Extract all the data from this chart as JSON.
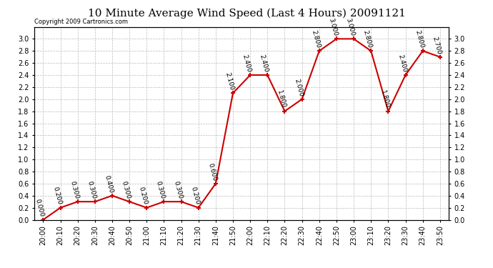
{
  "title": "10 Minute Average Wind Speed (Last 4 Hours) 20091121",
  "copyright": "Copyright 2009 Cartronics.com",
  "x_labels": [
    "20:00",
    "20:10",
    "20:20",
    "20:30",
    "20:40",
    "20:50",
    "21:00",
    "21:10",
    "21:20",
    "21:30",
    "21:40",
    "21:50",
    "22:00",
    "22:10",
    "22:20",
    "22:30",
    "22:40",
    "22:50",
    "23:00",
    "23:10",
    "23:20",
    "23:30",
    "23:40",
    "23:50"
  ],
  "y_values": [
    0.0,
    0.2,
    0.3,
    0.3,
    0.4,
    0.3,
    0.2,
    0.3,
    0.3,
    0.2,
    0.6,
    2.1,
    2.4,
    2.4,
    1.8,
    2.0,
    2.8,
    3.0,
    3.0,
    2.8,
    1.8,
    2.4,
    2.8,
    2.7
  ],
  "line_color": "#cc0000",
  "marker_color": "#cc0000",
  "bg_color": "#ffffff",
  "grid_color": "#bbbbbb",
  "ylim": [
    0.0,
    3.2
  ],
  "yticks": [
    0.0,
    0.2,
    0.4,
    0.6,
    0.8,
    1.0,
    1.2,
    1.4,
    1.6,
    1.8,
    2.0,
    2.2,
    2.4,
    2.6,
    2.8,
    3.0
  ],
  "title_fontsize": 11,
  "tick_fontsize": 7,
  "annotation_fontsize": 6.5,
  "annotation_rotation": -75
}
